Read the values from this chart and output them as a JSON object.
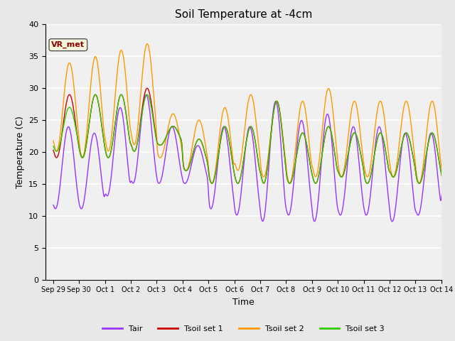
{
  "title": "Soil Temperature at -4cm",
  "xlabel": "Time",
  "ylabel": "Temperature (C)",
  "ylim": [
    0,
    40
  ],
  "background_color": "#e8e8e8",
  "plot_bg_color": "#f0f0f0",
  "grid_color": "white",
  "annotation_text": "VR_met",
  "annotation_color": "#8B0000",
  "annotation_bg": "#f5f5dc",
  "colors": {
    "Tair": "#9933FF",
    "Tsoil_set1": "#CC0000",
    "Tsoil_set2": "#FF9900",
    "Tsoil_set3": "#33CC00"
  },
  "legend_labels": [
    "Tair",
    "Tsoil set 1",
    "Tsoil set 2",
    "Tsoil set 3"
  ],
  "xtick_labels": [
    "Sep 29",
    "Sep 30",
    "Oct 1",
    "Oct 2",
    "Oct 3",
    "Oct 4",
    "Oct 5",
    "Oct 6",
    "Oct 7",
    "Oct 8",
    "Oct 9",
    "Oct 10",
    "Oct 11",
    "Oct 12",
    "Oct 13",
    "Oct 14"
  ],
  "ytick_values": [
    0,
    5,
    10,
    15,
    20,
    25,
    30,
    35,
    40
  ],
  "figsize": [
    6.4,
    4.8
  ],
  "dpi": 100
}
